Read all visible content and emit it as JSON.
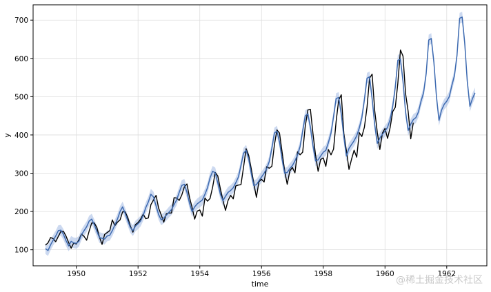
{
  "chart_data": {
    "type": "line",
    "xlabel": "time",
    "ylabel": "y",
    "xlim": [
      1948.6,
      1963.3
    ],
    "ylim": [
      58,
      740
    ],
    "x_ticks": [
      1950,
      1952,
      1954,
      1956,
      1958,
      1960,
      1962
    ],
    "y_ticks": [
      100,
      200,
      300,
      400,
      500,
      600,
      700
    ],
    "grid": true,
    "colors": {
      "actual": "#000000",
      "forecast": "#3d6ab0",
      "band": "#aabfe6",
      "grid": "#dddddd"
    },
    "x_start": 1949.0,
    "x_step": 0.083333,
    "series": [
      {
        "values": [
          112,
          118,
          132,
          129,
          121,
          135,
          148,
          148,
          136,
          119,
          104,
          118,
          115,
          126,
          141,
          135,
          125,
          149,
          170,
          170,
          158,
          133,
          114,
          140,
          145,
          150,
          178,
          163,
          172,
          178,
          199,
          199,
          184,
          162,
          146,
          166,
          171,
          180,
          193,
          181,
          183,
          218,
          230,
          242,
          209,
          191,
          172,
          194,
          196,
          196,
          236,
          235,
          229,
          243,
          264,
          272,
          237,
          211,
          180,
          201,
          204,
          188,
          235,
          227,
          234,
          264,
          302,
          293,
          259,
          229,
          203,
          229,
          242,
          233,
          267,
          269,
          270,
          315,
          364,
          347,
          312,
          274,
          237,
          278,
          284,
          277,
          317,
          313,
          318,
          374,
          413,
          405,
          355,
          306,
          271,
          306,
          315,
          301,
          356,
          348,
          355,
          422,
          465,
          467,
          404,
          347,
          305,
          336,
          340,
          318,
          362,
          348,
          363,
          435,
          491,
          505,
          404,
          359,
          310,
          337,
          360,
          342,
          406,
          396,
          420,
          472,
          548,
          559,
          463,
          407,
          362,
          405,
          417,
          391,
          419,
          461,
          472,
          535,
          622,
          606,
          508,
          461,
          390,
          432
        ]
      },
      {
        "values": [
          103,
          98,
          113,
          125,
          136,
          150,
          151,
          140,
          124,
          110,
          122,
          118,
          117,
          122,
          139,
          150,
          160,
          175,
          180,
          165,
          148,
          132,
          130,
          128,
          136,
          138,
          150,
          165,
          180,
          200,
          212,
          195,
          176,
          158,
          150,
          162,
          168,
          175,
          190,
          210,
          225,
          245,
          238,
          215,
          192,
          178,
          183,
          190,
          198,
          205,
          218,
          230,
          250,
          268,
          271,
          250,
          222,
          200,
          212,
          220,
          225,
          230,
          245,
          262,
          288,
          305,
          301,
          275,
          245,
          228,
          240,
          250,
          255,
          262,
          275,
          290,
          320,
          352,
          360,
          338,
          300,
          268,
          270,
          280,
          290,
          300,
          312,
          330,
          365,
          405,
          410,
          382,
          336,
          300,
          302,
          312,
          320,
          332,
          348,
          370,
          410,
          450,
          455,
          420,
          372,
          332,
          335,
          345,
          355,
          360,
          380,
          405,
          448,
          495,
          498,
          455,
          395,
          345,
          365,
          375,
          385,
          398,
          418,
          445,
          492,
          548,
          552,
          495,
          426,
          378,
          392,
          402,
          410,
          420,
          440,
          475,
          525,
          595,
          598,
          540,
          460,
          412,
          428,
          440,
          445,
          460,
          488,
          510,
          560,
          648,
          652,
          590,
          500,
          438,
          465,
          480,
          488,
          500,
          530,
          555,
          608,
          705,
          708,
          640,
          540,
          475,
          495,
          510
        ]
      }
    ],
    "band_width": 14
  },
  "watermark": "@稀土掘金技术社区"
}
